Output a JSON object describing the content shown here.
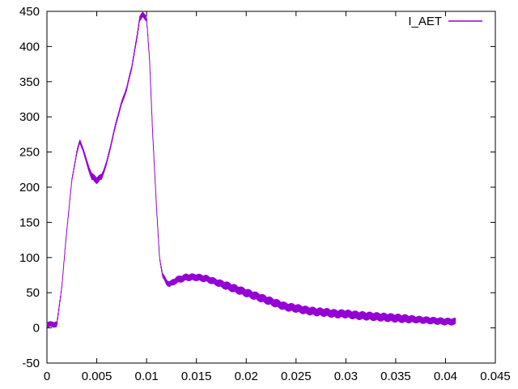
{
  "chart_data": {
    "type": "line",
    "title": "",
    "xlabel": "",
    "ylabel": "",
    "xlim": [
      0,
      0.045
    ],
    "ylim": [
      -50,
      450
    ],
    "x_ticks": [
      0,
      0.005,
      0.01,
      0.015,
      0.02,
      0.025,
      0.03,
      0.035,
      0.04,
      0.045
    ],
    "x_tick_labels": [
      "0",
      "0.005",
      "0.01",
      "0.015",
      "0.02",
      "0.025",
      "0.03",
      "0.035",
      "0.04",
      "0.045"
    ],
    "y_ticks": [
      -50,
      0,
      50,
      100,
      150,
      200,
      250,
      300,
      350,
      400,
      450
    ],
    "y_tick_labels": [
      "-50",
      "0",
      "50",
      "100",
      "150",
      "200",
      "250",
      "300",
      "350",
      "400",
      "450"
    ],
    "grid": false,
    "legend_position": "top-right",
    "series": [
      {
        "name": "I_AET",
        "color": "#9400d3",
        "x": [
          0,
          0.0005,
          0.001,
          0.0015,
          0.002,
          0.0025,
          0.003,
          0.0033,
          0.0036,
          0.004,
          0.0045,
          0.005,
          0.0055,
          0.006,
          0.0065,
          0.007,
          0.0075,
          0.008,
          0.0085,
          0.009,
          0.0093,
          0.0096,
          0.01,
          0.0103,
          0.0106,
          0.011,
          0.0113,
          0.0116,
          0.012,
          0.0123,
          0.013,
          0.014,
          0.015,
          0.016,
          0.017,
          0.018,
          0.019,
          0.02,
          0.021,
          0.022,
          0.023,
          0.024,
          0.025,
          0.026,
          0.027,
          0.028,
          0.029,
          0.03,
          0.031,
          0.032,
          0.033,
          0.034,
          0.035,
          0.036,
          0.037,
          0.038,
          0.039,
          0.04,
          0.041
        ],
        "y": [
          5,
          5,
          5,
          60,
          140,
          210,
          250,
          265,
          255,
          235,
          215,
          210,
          215,
          235,
          265,
          295,
          320,
          340,
          370,
          410,
          440,
          445,
          440,
          380,
          280,
          170,
          100,
          75,
          65,
          62,
          68,
          72,
          72,
          70,
          65,
          60,
          55,
          50,
          45,
          40,
          35,
          30,
          28,
          25,
          23,
          22,
          20,
          20,
          18,
          17,
          16,
          15,
          14,
          13,
          12,
          11,
          10,
          9,
          9
        ],
        "band_half_width": [
          4,
          4,
          4,
          2,
          2,
          2,
          3,
          3,
          3,
          4,
          5,
          5,
          4,
          3,
          3,
          3,
          3,
          3,
          3,
          4,
          4,
          4,
          4,
          3,
          2,
          2,
          2,
          3,
          4,
          4,
          5,
          5,
          5,
          5,
          5,
          6,
          6,
          6,
          6,
          6,
          6,
          6,
          6,
          6,
          6,
          6,
          6,
          6,
          6,
          6,
          6,
          6,
          6,
          6,
          5,
          5,
          5,
          5,
          5
        ]
      }
    ]
  }
}
